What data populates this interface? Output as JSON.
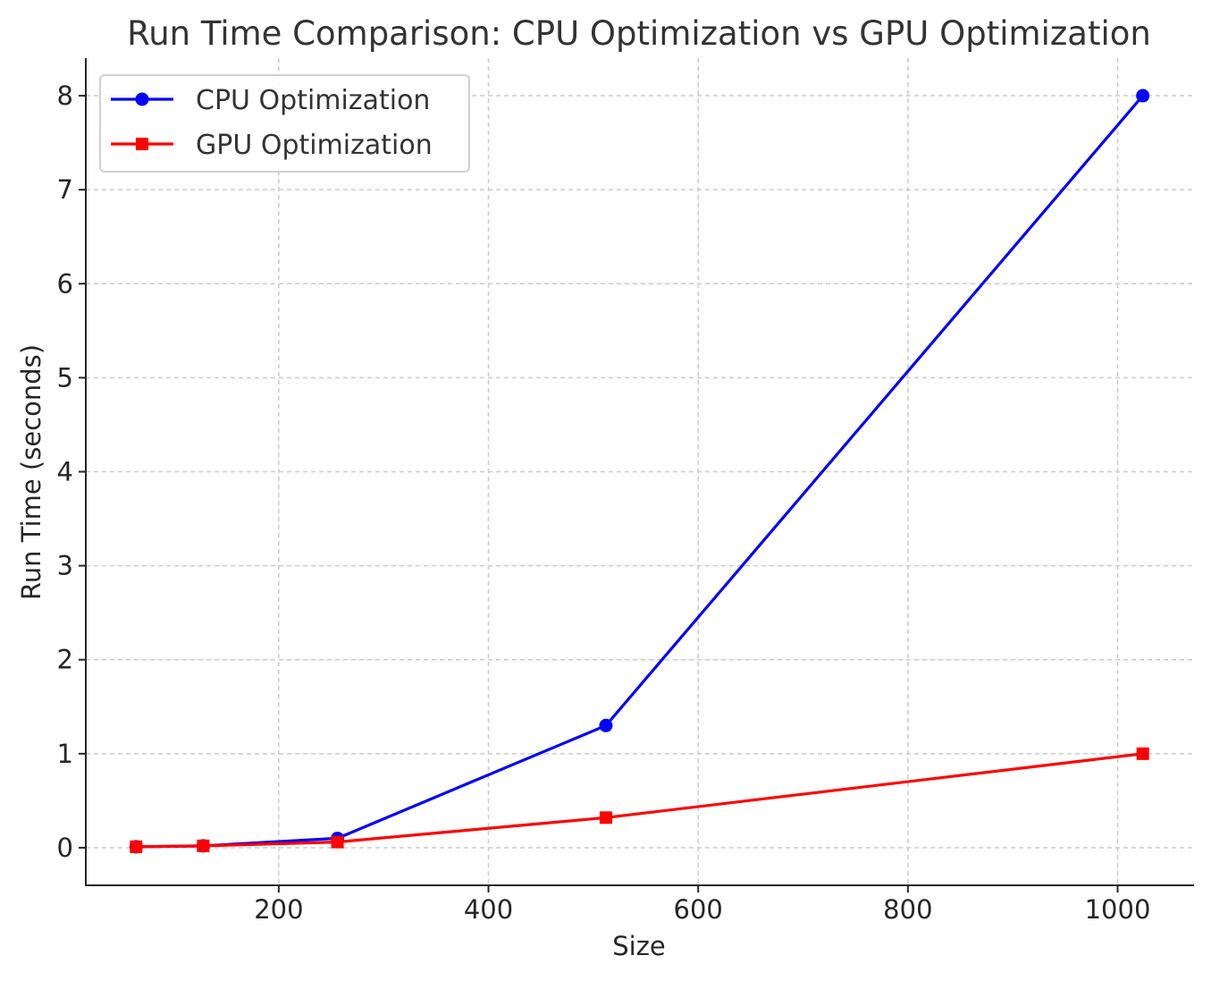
{
  "chart_data": {
    "type": "line",
    "title": "Run Time Comparison: CPU Optimization vs GPU Optimization",
    "xlabel": "Size",
    "ylabel": "Run Time (seconds)",
    "xlim": [
      16,
      1072
    ],
    "ylim": [
      -0.4,
      8.4
    ],
    "xticks": [
      200,
      400,
      600,
      800,
      1000
    ],
    "yticks": [
      0,
      1,
      2,
      3,
      4,
      5,
      6,
      7,
      8
    ],
    "grid": true,
    "legend_position": "top-left",
    "series": [
      {
        "name": "CPU Optimization",
        "color": "#0000ff",
        "marker": "circle",
        "x": [
          64,
          128,
          256,
          512,
          1024
        ],
        "y": [
          0.01,
          0.02,
          0.1,
          1.3,
          8.0
        ]
      },
      {
        "name": "GPU Optimization",
        "color": "#ff0000",
        "marker": "square",
        "x": [
          64,
          128,
          256,
          512,
          1024
        ],
        "y": [
          0.01,
          0.02,
          0.06,
          0.32,
          1.0
        ]
      }
    ]
  }
}
